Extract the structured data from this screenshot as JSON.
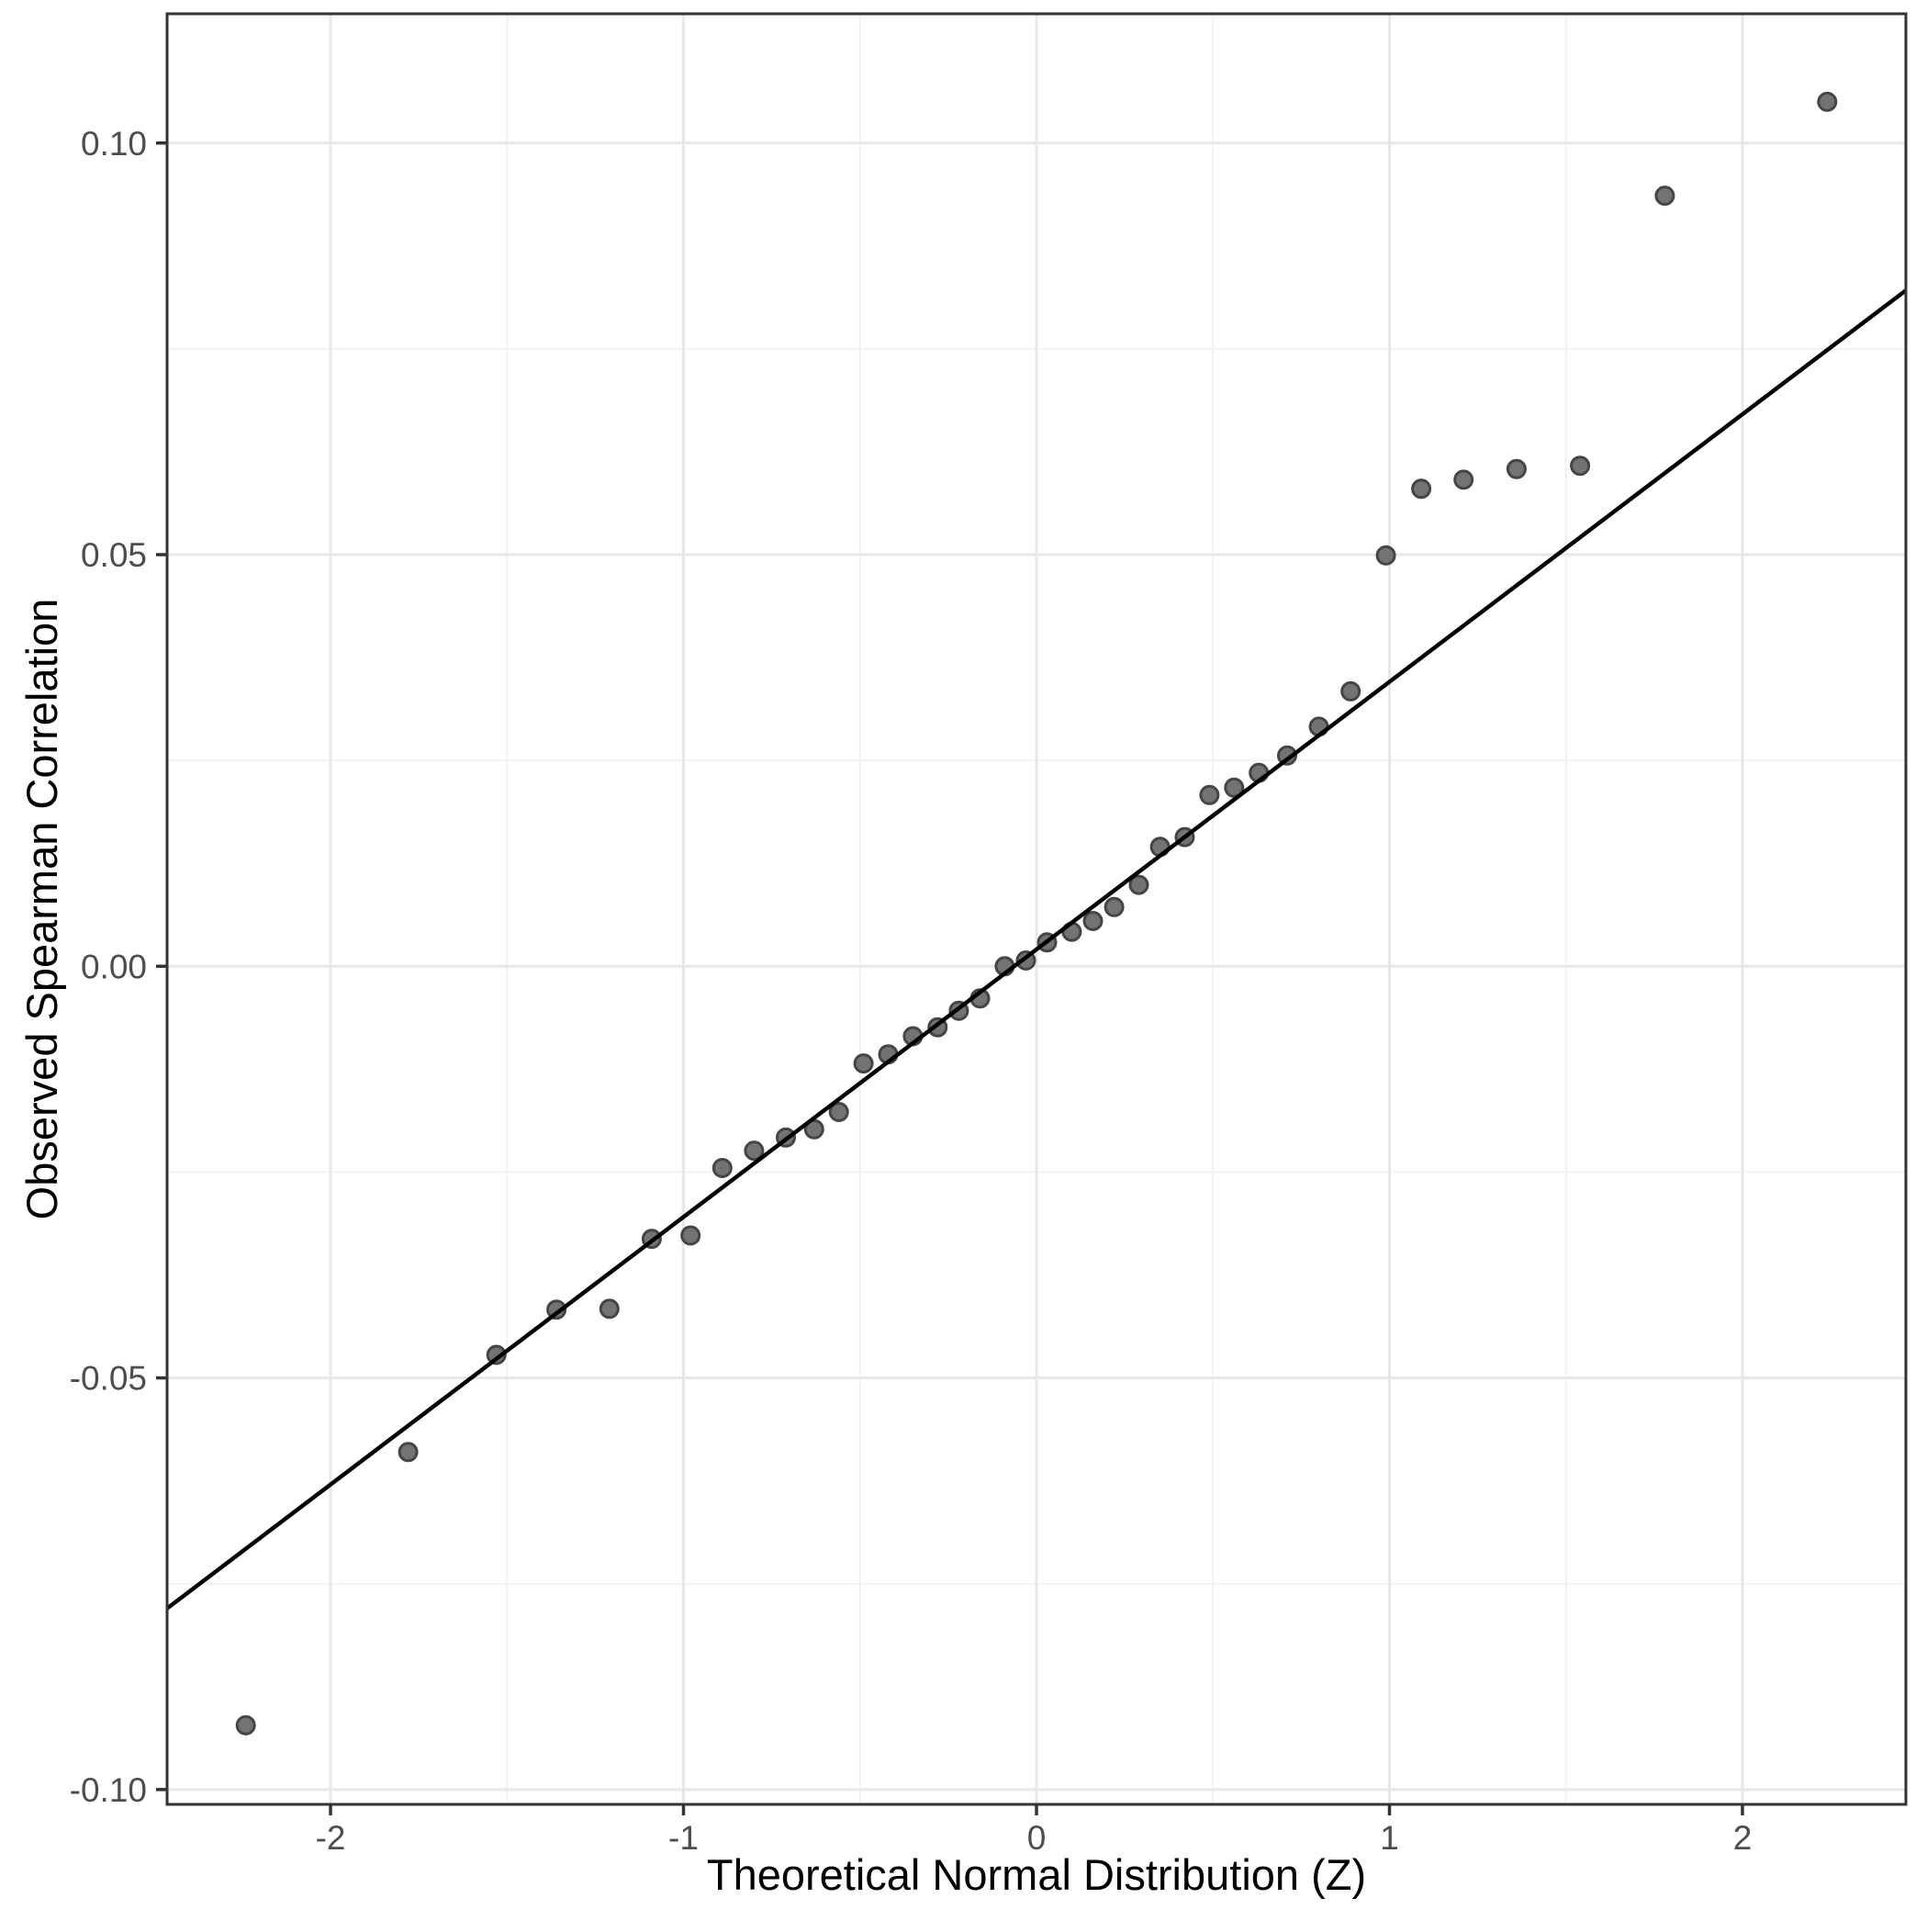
{
  "figure": {
    "type": "qq-plot",
    "x_axis_title": "Theoretical Normal Distribution (Z)",
    "y_axis_title": "Observed Spearman Correlation"
  },
  "chart_data": {
    "type": "scatter",
    "subtype": "qq-plot",
    "title": "",
    "xlabel": "Theoretical Normal Distribution (Z)",
    "ylabel": "Observed Spearman Correlation",
    "xlim": [
      -2.463,
      2.463
    ],
    "ylim": [
      -0.1018,
      0.1157
    ],
    "grid": "on",
    "legend": "none",
    "x_ticks": [
      {
        "value": -2,
        "label": "-2"
      },
      {
        "value": -1,
        "label": "-1"
      },
      {
        "value": 0,
        "label": "0"
      },
      {
        "value": 1,
        "label": "1"
      },
      {
        "value": 2,
        "label": "2"
      }
    ],
    "y_ticks": [
      {
        "value": 0.1,
        "label": "0.10"
      },
      {
        "value": 0.05,
        "label": "0.05"
      },
      {
        "value": 0.0,
        "label": "0.00"
      },
      {
        "value": -0.05,
        "label": "-0.05"
      },
      {
        "value": -0.1,
        "label": "-0.10"
      }
    ],
    "x_minor_gridlines": [
      -1.5,
      -0.5,
      0.5,
      1.5
    ],
    "y_minor_gridlines": [
      0.075,
      0.025,
      -0.025,
      -0.075
    ],
    "points": [
      [
        -2.24,
        -0.0922
      ],
      [
        -1.78,
        -0.059
      ],
      [
        -1.53,
        -0.0472
      ],
      [
        -1.36,
        -0.0417
      ],
      [
        -1.21,
        -0.0416
      ],
      [
        -1.09,
        -0.0331
      ],
      [
        -0.98,
        -0.0327
      ],
      [
        -0.89,
        -0.0245
      ],
      [
        -0.8,
        -0.0224
      ],
      [
        -0.71,
        -0.0208
      ],
      [
        -0.63,
        -0.0198
      ],
      [
        -0.56,
        -0.0177
      ],
      [
        -0.49,
        -0.0118
      ],
      [
        -0.42,
        -0.0107
      ],
      [
        -0.35,
        -0.0085
      ],
      [
        -0.28,
        -0.0074
      ],
      [
        -0.22,
        -0.0054
      ],
      [
        -0.16,
        -0.0039
      ],
      [
        -0.09,
        0.0
      ],
      [
        -0.03,
        0.0007
      ],
      [
        0.03,
        0.0029
      ],
      [
        0.1,
        0.0042
      ],
      [
        0.16,
        0.0055
      ],
      [
        0.22,
        0.0072
      ],
      [
        0.29,
        0.0099
      ],
      [
        0.35,
        0.0145
      ],
      [
        0.42,
        0.0157
      ],
      [
        0.49,
        0.0208
      ],
      [
        0.56,
        0.0217
      ],
      [
        0.63,
        0.0235
      ],
      [
        0.71,
        0.0256
      ],
      [
        0.8,
        0.0291
      ],
      [
        0.89,
        0.0334
      ],
      [
        0.99,
        0.0499
      ],
      [
        1.09,
        0.058
      ],
      [
        1.21,
        0.0591
      ],
      [
        1.36,
        0.0604
      ],
      [
        1.54,
        0.0608
      ],
      [
        1.78,
        0.0936
      ],
      [
        2.24,
        0.105
      ]
    ],
    "reference_line": {
      "x1": -2.463,
      "y1": -0.078,
      "x2": 2.463,
      "y2": 0.0821,
      "slope": 0.0325,
      "intercept": 0.002
    },
    "style": {
      "point_fill": "#737373",
      "point_stroke": "#454545",
      "line_color": "#000000",
      "panel_border_color": "#333333",
      "tick_color": "#333333",
      "major_grid_color": "#e7e7e7",
      "minor_grid_color": "#f1f1f1",
      "background": "#ffffff"
    }
  }
}
